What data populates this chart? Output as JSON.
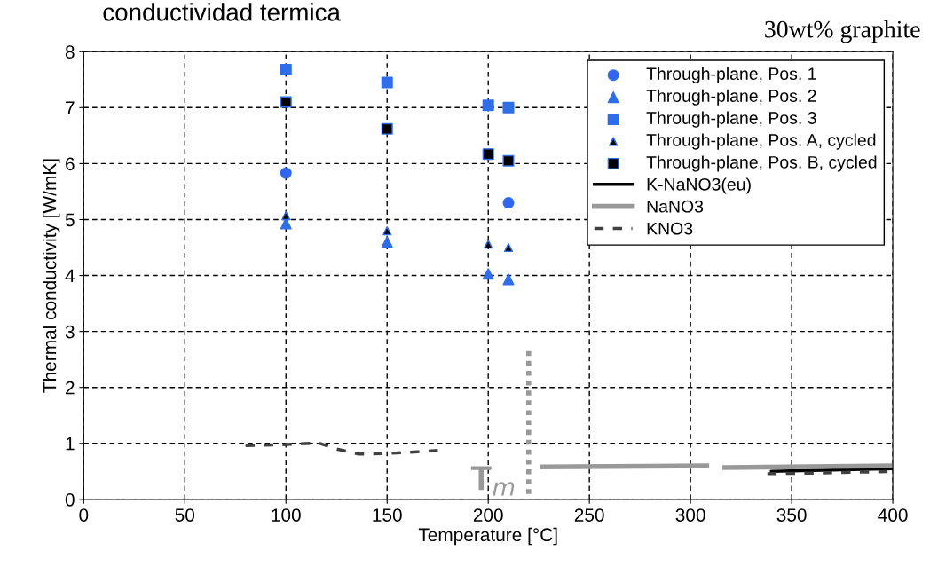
{
  "chart_data": {
    "type": "scatter",
    "title": "conductividad termica",
    "subtitle": "30wt% graphite",
    "xlabel": "Temperature [°C]",
    "ylabel": "Thermal conductivity [W/mK]",
    "xlim": [
      0,
      400
    ],
    "xticks": [
      0,
      50,
      100,
      150,
      200,
      250,
      300,
      350,
      400
    ],
    "ylim": [
      0,
      8
    ],
    "yticks": [
      0,
      1,
      2,
      3,
      4,
      5,
      6,
      7,
      8
    ],
    "grid": true,
    "legend": "top right",
    "series": [
      {
        "name": "Through-plane, Pos. 1",
        "marker": "circle",
        "color": "#3366f0",
        "x": [
          100,
          210
        ],
        "values": [
          5.83,
          5.3
        ]
      },
      {
        "name": "Through-plane, Pos. 2",
        "marker": "triangle",
        "color": "#2f6ee8",
        "x": [
          100,
          150,
          200,
          210
        ],
        "values": [
          4.93,
          4.6,
          4.03,
          3.93
        ]
      },
      {
        "name": "Through-plane, Pos. 3",
        "marker": "square",
        "color": "#2f6ee8",
        "x": [
          100,
          150,
          200,
          210
        ],
        "values": [
          7.68,
          7.45,
          7.04,
          7.0
        ]
      },
      {
        "name": "Through-plane, Pos. A, cycled",
        "marker": "triangle",
        "color": "#000000",
        "x": [
          100,
          150,
          200,
          210
        ],
        "values": [
          5.07,
          4.8,
          4.56,
          4.5
        ]
      },
      {
        "name": "Through-plane, Pos. B, cycled",
        "marker": "square",
        "color": "#000000",
        "x": [
          100,
          150,
          200,
          210
        ],
        "values": [
          7.1,
          6.62,
          6.17,
          6.05
        ]
      },
      {
        "name": "K-NaNO3(eu)",
        "type": "line",
        "marker": "none",
        "line_style": "solid",
        "color": "#000000",
        "x": [
          340,
          400
        ],
        "values": [
          0.5,
          0.55
        ]
      },
      {
        "name": "NaNO3",
        "type": "line",
        "marker": "none",
        "line_style": "solid",
        "color": "#999999",
        "x": [
          227,
          308,
          312,
          317,
          400
        ],
        "values": [
          0.58,
          0.6,
          null,
          0.57,
          0.6
        ]
      },
      {
        "name": "KNO3",
        "type": "line",
        "marker": "none",
        "line_style": "dashed",
        "color": "#404040",
        "x": [
          80,
          100,
          116,
          125,
          136,
          150,
          165,
          178,
          260,
          338,
          360,
          400
        ],
        "values": [
          0.96,
          0.98,
          1.01,
          0.9,
          0.81,
          0.82,
          0.85,
          0.88,
          null,
          0.46,
          0.47,
          0.5
        ]
      },
      {
        "type": "line",
        "marker": "none",
        "line_style": "dotted",
        "color": "#999999",
        "x": [
          220,
          220
        ],
        "values": [
          2.65,
          0
        ]
      }
    ],
    "annotations": [
      "T$_{m}$"
    ]
  }
}
